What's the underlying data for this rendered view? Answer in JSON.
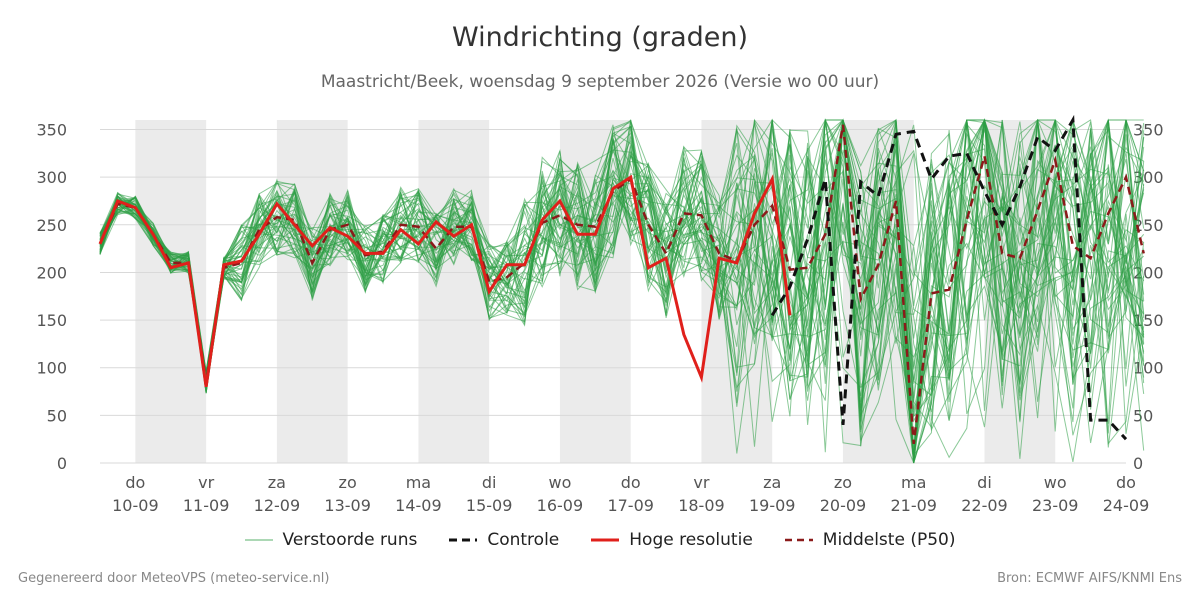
{
  "title": "Windrichting (graden)",
  "subtitle": "Maastricht/Beek, woensdag  9 september 2026 (Versie wo 00 uur)",
  "colors": {
    "ensemble": "#2e9e46",
    "control": "#111111",
    "highres": "#e0201b",
    "median": "#8b1a1a",
    "weekend_band": "#ebebeb",
    "grid": "#d9d9d9"
  },
  "legend": [
    {
      "label": "Verstoorde runs",
      "style": "ensemble"
    },
    {
      "label": "Controle",
      "style": "control"
    },
    {
      "label": "Hoge resolutie",
      "style": "highres"
    },
    {
      "label": "Middelste (P50)",
      "style": "median"
    }
  ],
  "footer_left": "Gegenereerd door MeteoVPS (meteo-service.nl)",
  "footer_right": "Bron: ECMWF AIFS/KNMI Ens",
  "chart_data": {
    "type": "line",
    "title": "Windrichting (graden)",
    "x_start": "2026-09-09 12:00",
    "x_end": "2026-09-24 00:00",
    "time_step_hours": 6,
    "ylim": [
      0,
      360
    ],
    "yticks": [
      0,
      50,
      100,
      150,
      200,
      250,
      300,
      350
    ],
    "y_axes": [
      "left",
      "right"
    ],
    "grid": "horizontal",
    "legend_position": "bottom",
    "shaded_days": [
      "2026-09-10",
      "2026-09-12",
      "2026-09-14",
      "2026-09-16",
      "2026-09-18",
      "2026-09-20",
      "2026-09-22"
    ],
    "x_ticks": [
      {
        "day": "do",
        "date": "10-09"
      },
      {
        "day": "vr",
        "date": "11-09"
      },
      {
        "day": "za",
        "date": "12-09"
      },
      {
        "day": "zo",
        "date": "13-09"
      },
      {
        "day": "ma",
        "date": "14-09"
      },
      {
        "day": "di",
        "date": "15-09"
      },
      {
        "day": "wo",
        "date": "16-09"
      },
      {
        "day": "do",
        "date": "17-09"
      },
      {
        "day": "vr",
        "date": "18-09"
      },
      {
        "day": "za",
        "date": "19-09"
      },
      {
        "day": "zo",
        "date": "20-09"
      },
      {
        "day": "ma",
        "date": "21-09"
      },
      {
        "day": "di",
        "date": "22-09"
      },
      {
        "day": "wo",
        "date": "23-09"
      },
      {
        "day": "do",
        "date": "24-09"
      }
    ],
    "series": [
      {
        "name": "Hoge resolutie",
        "x_start": "2026-09-09 12:00",
        "time_step_hours": 6,
        "values": [
          230,
          275,
          268,
          240,
          205,
          210,
          80,
          208,
          212,
          240,
          272,
          250,
          228,
          247,
          238,
          220,
          220,
          245,
          230,
          253,
          238,
          250,
          180,
          208,
          208,
          255,
          275,
          240,
          240,
          288,
          300,
          205,
          215,
          135,
          90,
          215,
          210,
          262,
          298,
          155
        ]
      },
      {
        "name": "Controle",
        "x_start": "2026-09-19 00:00",
        "time_step_hours": 6,
        "values": [
          155,
          185,
          235,
          298,
          40,
          295,
          280,
          345,
          348,
          298,
          322,
          325,
          285,
          250,
          290,
          342,
          328,
          360,
          45,
          45,
          25
        ]
      },
      {
        "name": "Middelste (P50)",
        "x_start": "2026-09-09 12:00",
        "time_step_hours": 6,
        "values": [
          230,
          272,
          268,
          240,
          210,
          210,
          85,
          205,
          210,
          245,
          258,
          255,
          210,
          245,
          250,
          218,
          222,
          250,
          248,
          225,
          248,
          248,
          190,
          195,
          210,
          252,
          260,
          250,
          248,
          285,
          298,
          250,
          220,
          262,
          260,
          220,
          212,
          250,
          270,
          203,
          205,
          240,
          355,
          172,
          208,
          275,
          20,
          178,
          182,
          255,
          322,
          220,
          215,
          265,
          318,
          228,
          215,
          262,
          300,
          220
        ]
      }
    ],
    "ensemble": {
      "name": "Verstoorde runs",
      "members": 50,
      "x_start": "2026-09-09 12:00",
      "time_step_hours": 6
    }
  }
}
